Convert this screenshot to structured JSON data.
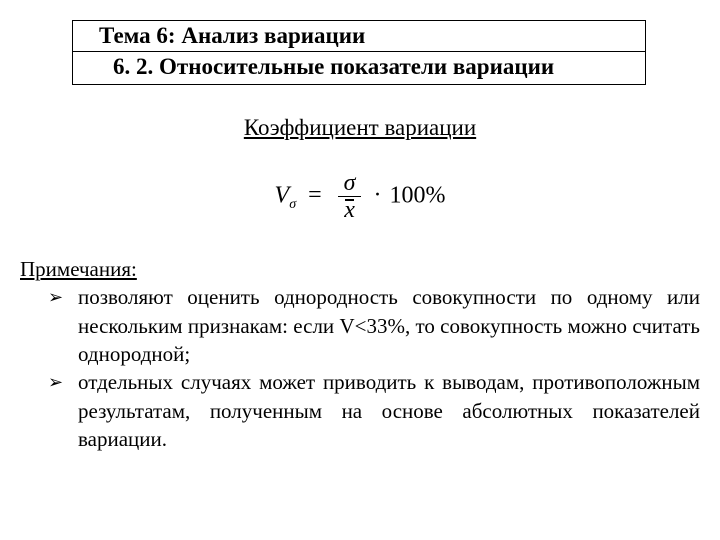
{
  "header": {
    "line1": "Тема 6: Анализ вариации",
    "line2": "6. 2. Относительные показатели вариации"
  },
  "subtitle": "Коэффициент вариации",
  "formula": {
    "lhs_var": "V",
    "lhs_sub": "σ",
    "eq": "=",
    "numerator": "σ",
    "denominator": "x",
    "dot": "·",
    "rhs": "100%"
  },
  "notes": {
    "title": "Примечания:",
    "bullet_glyph": "➢",
    "items": [
      "позволяют оценить однородность совокупности по одному или нескольким признакам: если V<33%, то совокупность можно считать однородной;",
      " отдельных случаях может приводить к выводам, противоположным результатам, полученным на основе абсолютных показателей вариации."
    ]
  }
}
